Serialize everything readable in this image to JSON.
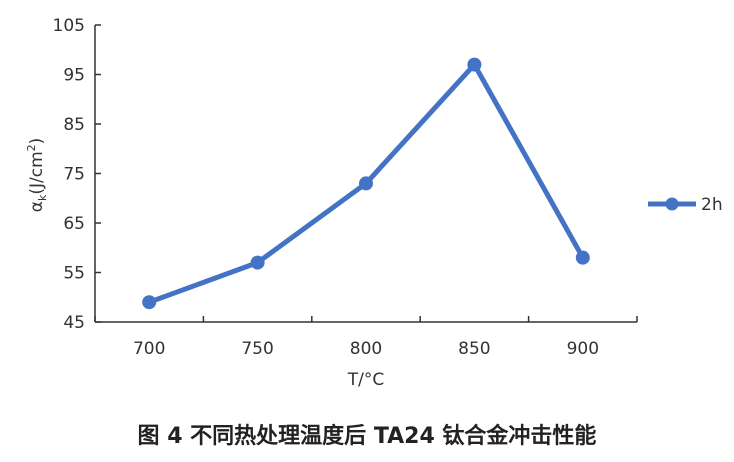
{
  "chart_data": {
    "type": "line",
    "categories": [
      "700",
      "750",
      "800",
      "850",
      "900"
    ],
    "series": [
      {
        "name": "2h",
        "values": [
          49,
          57,
          73,
          97,
          58
        ],
        "color": "#4472C4"
      }
    ],
    "xlabel": "T/°C",
    "ylabel_main": "α",
    "ylabel_sub": "k",
    "ylabel_unit": "(J/cm",
    "ylabel_sup": "2",
    "ylabel_close": ")",
    "ylim": [
      45,
      105
    ],
    "yticks": [
      45,
      55,
      65,
      75,
      85,
      95,
      105
    ],
    "grid": false,
    "legend": "right"
  },
  "caption": "图 4  不同热处理温度后 TA24 钛合金冲击性能"
}
